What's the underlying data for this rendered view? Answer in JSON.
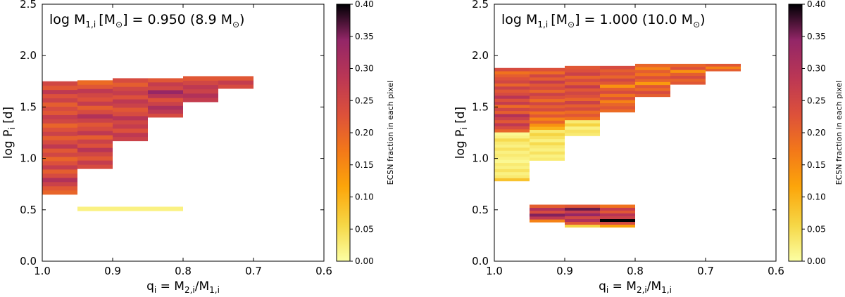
{
  "chart_data": [
    {
      "type": "heatmap",
      "title_parts": {
        "main": "log M",
        "sub": "1,i",
        "unit_open": "[M",
        "sun": "⊙",
        "rest": "] = 0.950 (8.9 M",
        "close": ")"
      },
      "xlabel_parts": {
        "q": "q",
        "i": "i",
        "eq": " = M",
        "num_sub": "2,i",
        "slash": "/M",
        "den_sub": "1,i"
      },
      "ylabel_parts": {
        "main": "log P",
        "sub": "i",
        "unit": " [d]"
      },
      "xlim": [
        1.0,
        0.6
      ],
      "ylim": [
        0.0,
        2.5
      ],
      "xticks": [
        "1.0",
        "0.9",
        "0.8",
        "0.7",
        "0.6"
      ],
      "yticks": [
        "0.0",
        "0.5",
        "1.0",
        "1.5",
        "2.0",
        "2.5"
      ],
      "colorbar": {
        "label": "ECSN fraction in each pixel",
        "min": 0.0,
        "max": 0.4,
        "ticks": [
          "0.00",
          "0.05",
          "0.10",
          "0.15",
          "0.20",
          "0.25",
          "0.30",
          "0.35",
          "0.40"
        ],
        "colormap": "inferno_r"
      },
      "columns": [
        {
          "q": [
            1.0,
            0.95
          ],
          "logP": [
            0.65,
            1.75
          ],
          "values": [
            0.2,
            0.22,
            0.26,
            0.3,
            0.24,
            0.21,
            0.27,
            0.23,
            0.2,
            0.25,
            0.22,
            0.28,
            0.24,
            0.21,
            0.26,
            0.23,
            0.2,
            0.25,
            0.27,
            0.22,
            0.24,
            0.21,
            0.26,
            0.23,
            0.28,
            0.22,
            0.25
          ]
        },
        {
          "q": [
            0.95,
            0.9
          ],
          "logP": [
            0.9,
            1.76
          ],
          "values": [
            0.24,
            0.27,
            0.22,
            0.25,
            0.29,
            0.23,
            0.26,
            0.21,
            0.28,
            0.24,
            0.22,
            0.26,
            0.3,
            0.24,
            0.21,
            0.27,
            0.23,
            0.25,
            0.28,
            0.22,
            0.19
          ]
        },
        {
          "q": [
            0.9,
            0.85
          ],
          "logP": [
            1.17,
            1.78
          ],
          "values": [
            0.26,
            0.28,
            0.23,
            0.27,
            0.25,
            0.29,
            0.24,
            0.22,
            0.26,
            0.28,
            0.23,
            0.27,
            0.25,
            0.21,
            0.24
          ]
        },
        {
          "q": [
            0.85,
            0.8
          ],
          "logP": [
            1.4,
            1.78
          ],
          "values": [
            0.24,
            0.28,
            0.31,
            0.26,
            0.23,
            0.29,
            0.34,
            0.25,
            0.27,
            0.22
          ]
        },
        {
          "q": [
            0.8,
            0.75
          ],
          "logP": [
            1.55,
            1.8
          ],
          "values": [
            0.27,
            0.3,
            0.26,
            0.28,
            0.25,
            0.22
          ]
        },
        {
          "q": [
            0.75,
            0.7
          ],
          "logP": [
            1.68,
            1.8
          ],
          "values": [
            0.24,
            0.27,
            0.22
          ]
        },
        {
          "q": [
            0.95,
            0.8
          ],
          "logP": [
            0.49,
            0.53
          ],
          "values": [
            0.02
          ]
        }
      ]
    },
    {
      "type": "heatmap",
      "title_parts": {
        "main": "log M",
        "sub": "1,i",
        "unit_open": "[M",
        "sun": "⊙",
        "rest": "] = 1.000 (10.0 M",
        "close": ")"
      },
      "xlabel_parts": {
        "q": "q",
        "i": "i",
        "eq": " = M",
        "num_sub": "2,i",
        "slash": "/M",
        "den_sub": "1,i"
      },
      "ylabel_parts": {
        "main": "log P",
        "sub": "i",
        "unit": " [d]"
      },
      "xlim": [
        1.0,
        0.6
      ],
      "ylim": [
        0.0,
        2.5
      ],
      "xticks": [
        "1.0",
        "0.9",
        "0.8",
        "0.7",
        "0.6"
      ],
      "yticks": [
        "0.0",
        "0.5",
        "1.0",
        "1.5",
        "2.0",
        "2.5"
      ],
      "colorbar": {
        "label": "ECSN fraction in each pixel",
        "min": 0.0,
        "max": 0.4,
        "ticks": [
          "0.00",
          "0.05",
          "0.10",
          "0.15",
          "0.20",
          "0.25",
          "0.30",
          "0.35",
          "0.40"
        ],
        "colormap": "inferno_r"
      },
      "columns": [
        {
          "q": [
            1.0,
            0.95
          ],
          "logP": [
            0.78,
            1.88
          ],
          "values": [
            0.08,
            0.03,
            0.02,
            0.04,
            0.02,
            0.03,
            0.01,
            0.02,
            0.03,
            0.02,
            0.04,
            0.02,
            0.03,
            0.05,
            0.02,
            0.01,
            0.2,
            0.24,
            0.28,
            0.22,
            0.26,
            0.3,
            0.21,
            0.25,
            0.19,
            0.27,
            0.23,
            0.29,
            0.24,
            0.22,
            0.26,
            0.2,
            0.25,
            0.23,
            0.21,
            0.18,
            0.24
          ]
        },
        {
          "q": [
            0.95,
            0.9
          ],
          "logP": [
            0.98,
            1.88
          ],
          "values": [
            0.03,
            0.02,
            0.04,
            0.02,
            0.03,
            0.05,
            0.02,
            0.04,
            0.06,
            0.03,
            0.1,
            0.14,
            0.2,
            0.16,
            0.22,
            0.18,
            0.24,
            0.21,
            0.25,
            0.19,
            0.23,
            0.26,
            0.2,
            0.24,
            0.22,
            0.27,
            0.21,
            0.25,
            0.19,
            0.23
          ]
        },
        {
          "q": [
            0.9,
            0.85
          ],
          "logP": [
            1.22,
            1.9
          ],
          "values": [
            0.03,
            0.04,
            0.02,
            0.06,
            0.03,
            0.18,
            0.22,
            0.19,
            0.24,
            0.21,
            0.26,
            0.2,
            0.23,
            0.25,
            0.22,
            0.27,
            0.21,
            0.24,
            0.2,
            0.26,
            0.23,
            0.22
          ]
        },
        {
          "q": [
            0.85,
            0.8
          ],
          "logP": [
            1.45,
            1.9
          ],
          "values": [
            0.19,
            0.22,
            0.2,
            0.16,
            0.23,
            0.18,
            0.24,
            0.21,
            0.14,
            0.22,
            0.25,
            0.2,
            0.23,
            0.21,
            0.24
          ]
        },
        {
          "q": [
            0.8,
            0.75
          ],
          "logP": [
            1.6,
            1.92
          ],
          "values": [
            0.21,
            0.24,
            0.19,
            0.22,
            0.13,
            0.2,
            0.23,
            0.18,
            0.21,
            0.16,
            0.2
          ]
        },
        {
          "q": [
            0.75,
            0.7
          ],
          "logP": [
            1.72,
            1.92
          ],
          "values": [
            0.22,
            0.2,
            0.24,
            0.21,
            0.14,
            0.23,
            0.2
          ]
        },
        {
          "q": [
            0.7,
            0.65
          ],
          "logP": [
            1.85,
            1.92
          ],
          "values": [
            0.21,
            0.16,
            0.22
          ]
        },
        {
          "q": [
            0.95,
            0.9
          ],
          "logP": [
            0.38,
            0.55
          ],
          "values": [
            0.16,
            0.28,
            0.35,
            0.24,
            0.3,
            0.21
          ]
        },
        {
          "q": [
            0.9,
            0.85
          ],
          "logP": [
            0.33,
            0.55
          ],
          "values": [
            0.06,
            0.22,
            0.3,
            0.25,
            0.34,
            0.27,
            0.36,
            0.22
          ]
        },
        {
          "q": [
            0.85,
            0.8
          ],
          "logP": [
            0.33,
            0.55
          ],
          "values": [
            0.12,
            0.24,
            0.4,
            0.26,
            0.29,
            0.22,
            0.27,
            0.18
          ]
        }
      ]
    }
  ]
}
